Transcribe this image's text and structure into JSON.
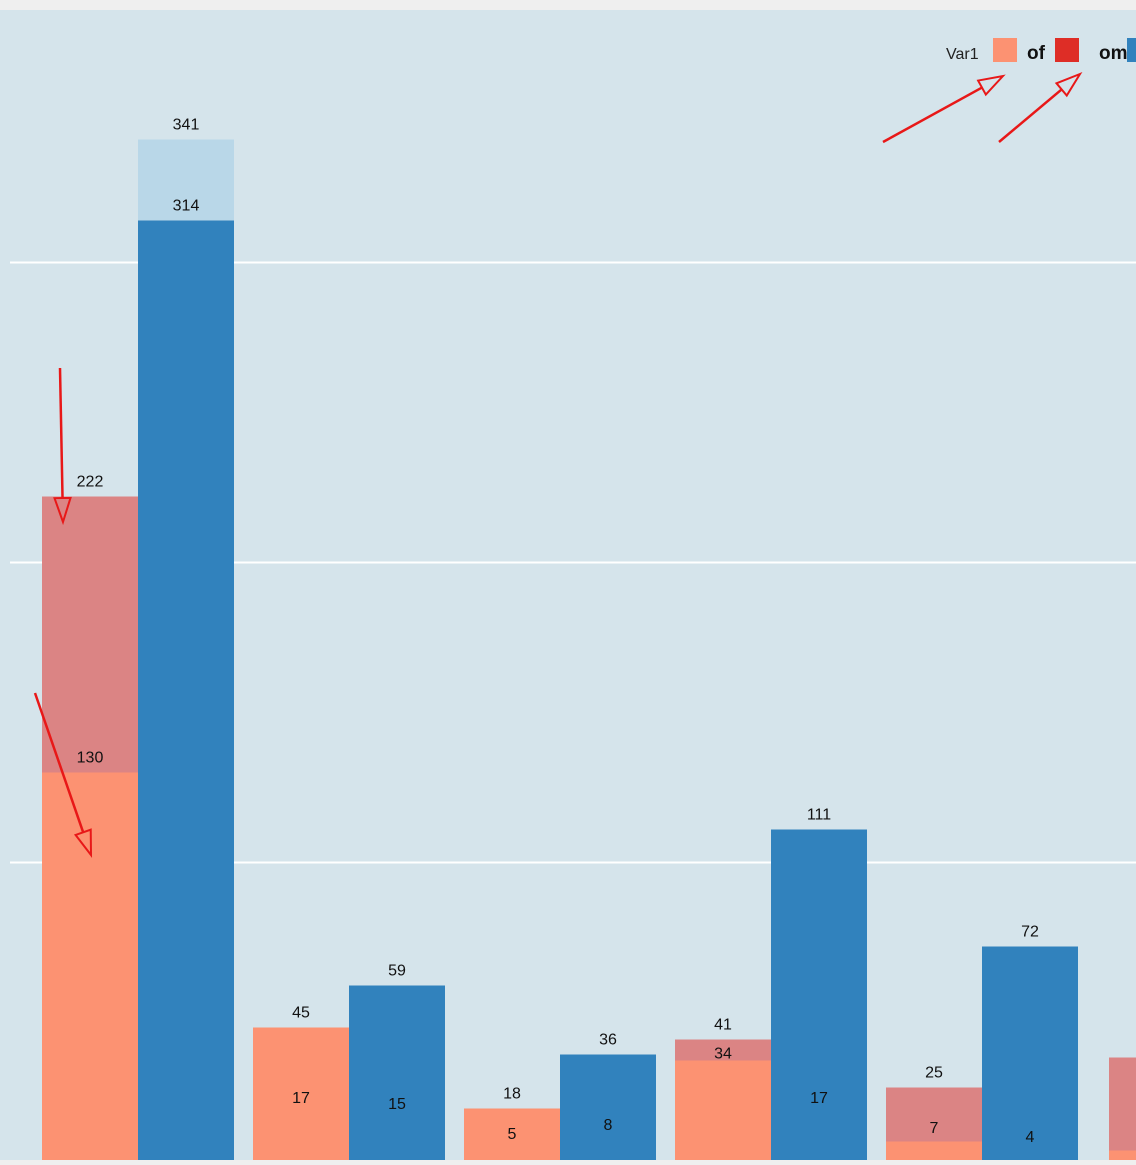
{
  "chart_data": {
    "type": "bar",
    "legend": {
      "title": "Var1",
      "placement": "top-right",
      "entries": [
        {
          "label": "",
          "color": "#fc9272"
        },
        {
          "label": "of",
          "color": "#de2d26"
        },
        {
          "label": "om",
          "color": "#3182bd"
        }
      ]
    },
    "ylim": [
      0,
      400
    ],
    "grid": true,
    "gridlines": [
      100,
      200,
      300
    ],
    "bars": [
      {
        "x": 0,
        "base_color": "#fc9272",
        "overlay_color": "#db8484",
        "inner": 130,
        "outer": 222,
        "labels": [
          "130",
          "222"
        ]
      },
      {
        "x": 1,
        "base_color": "#3182bd",
        "overlay_color": "#b9d7e8",
        "inner": 314,
        "outer": 341,
        "labels": [
          "314",
          "341"
        ]
      },
      {
        "x": 2,
        "base_color": "#fc9272",
        "inner": 45,
        "labels": [
          "17",
          "45"
        ]
      },
      {
        "x": 3,
        "base_color": "#3182bd",
        "inner": 59,
        "labels": [
          "15",
          "59"
        ]
      },
      {
        "x": 4,
        "base_color": "#fc9272",
        "inner": 18,
        "labels": [
          "5",
          "18"
        ]
      },
      {
        "x": 5,
        "base_color": "#3182bd",
        "inner": 36,
        "labels": [
          "8",
          "36"
        ]
      },
      {
        "x": 6,
        "base_color": "#fc9272",
        "overlay_color": "#db8484",
        "inner": 34,
        "outer": 41,
        "labels": [
          "34",
          "41"
        ]
      },
      {
        "x": 7,
        "base_color": "#3182bd",
        "inner": 111,
        "labels": [
          "17",
          "111"
        ]
      },
      {
        "x": 8,
        "base_color": "#fc9272",
        "overlay_color": "#db8484",
        "inner": 7,
        "outer": 25,
        "labels": [
          "7",
          "25"
        ]
      },
      {
        "x": 9,
        "base_color": "#3182bd",
        "inner": 72,
        "labels": [
          "4",
          "72"
        ]
      },
      {
        "x": 10,
        "base_color": "#fc9272",
        "overlay_color": "#db8484",
        "inner": 4,
        "outer": 35,
        "labels": []
      }
    ]
  }
}
